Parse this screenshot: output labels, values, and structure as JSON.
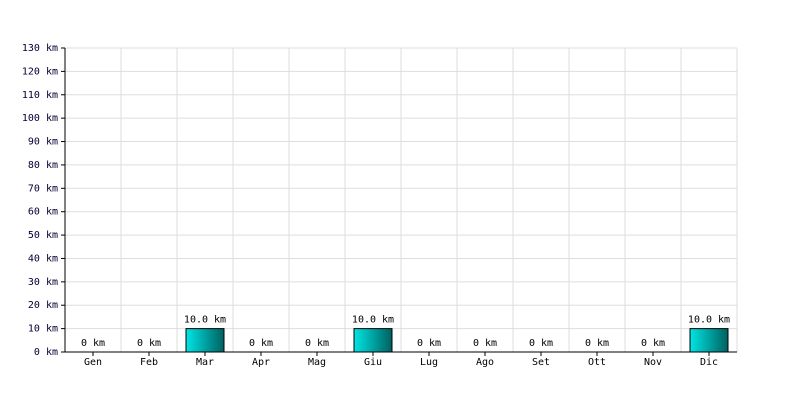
{
  "chart_data": {
    "type": "bar",
    "categories": [
      "Gen",
      "Feb",
      "Mar",
      "Apr",
      "Mag",
      "Giu",
      "Lug",
      "Ago",
      "Set",
      "Ott",
      "Nov",
      "Dic"
    ],
    "values": [
      0,
      0,
      10,
      0,
      0,
      10,
      0,
      0,
      0,
      0,
      0,
      10
    ],
    "value_labels": [
      "0 km",
      "0 km",
      "10.0 km",
      "0 km",
      "0 km",
      "10.0 km",
      "0 km",
      "0 km",
      "0 km",
      "0 km",
      "0 km",
      "10.0 km"
    ],
    "color": "#00e5e5",
    "ylim": [
      0,
      130
    ],
    "yticks": [
      {
        "value": 0,
        "label": "0 km"
      },
      {
        "value": 10,
        "label": "10 km"
      },
      {
        "value": 20,
        "label": "20 km"
      },
      {
        "value": 30,
        "label": "30 km"
      },
      {
        "value": 40,
        "label": "40 km"
      },
      {
        "value": 50,
        "label": "50 km"
      },
      {
        "value": 60,
        "label": "60 km"
      },
      {
        "value": 70,
        "label": "70 km"
      },
      {
        "value": 80,
        "label": "80 km"
      },
      {
        "value": 90,
        "label": "90 km"
      },
      {
        "value": 100,
        "label": "100 km"
      },
      {
        "value": 110,
        "label": "110 km"
      },
      {
        "value": 120,
        "label": "120 km"
      },
      {
        "value": 130,
        "label": "130 km"
      }
    ],
    "grid": true
  }
}
